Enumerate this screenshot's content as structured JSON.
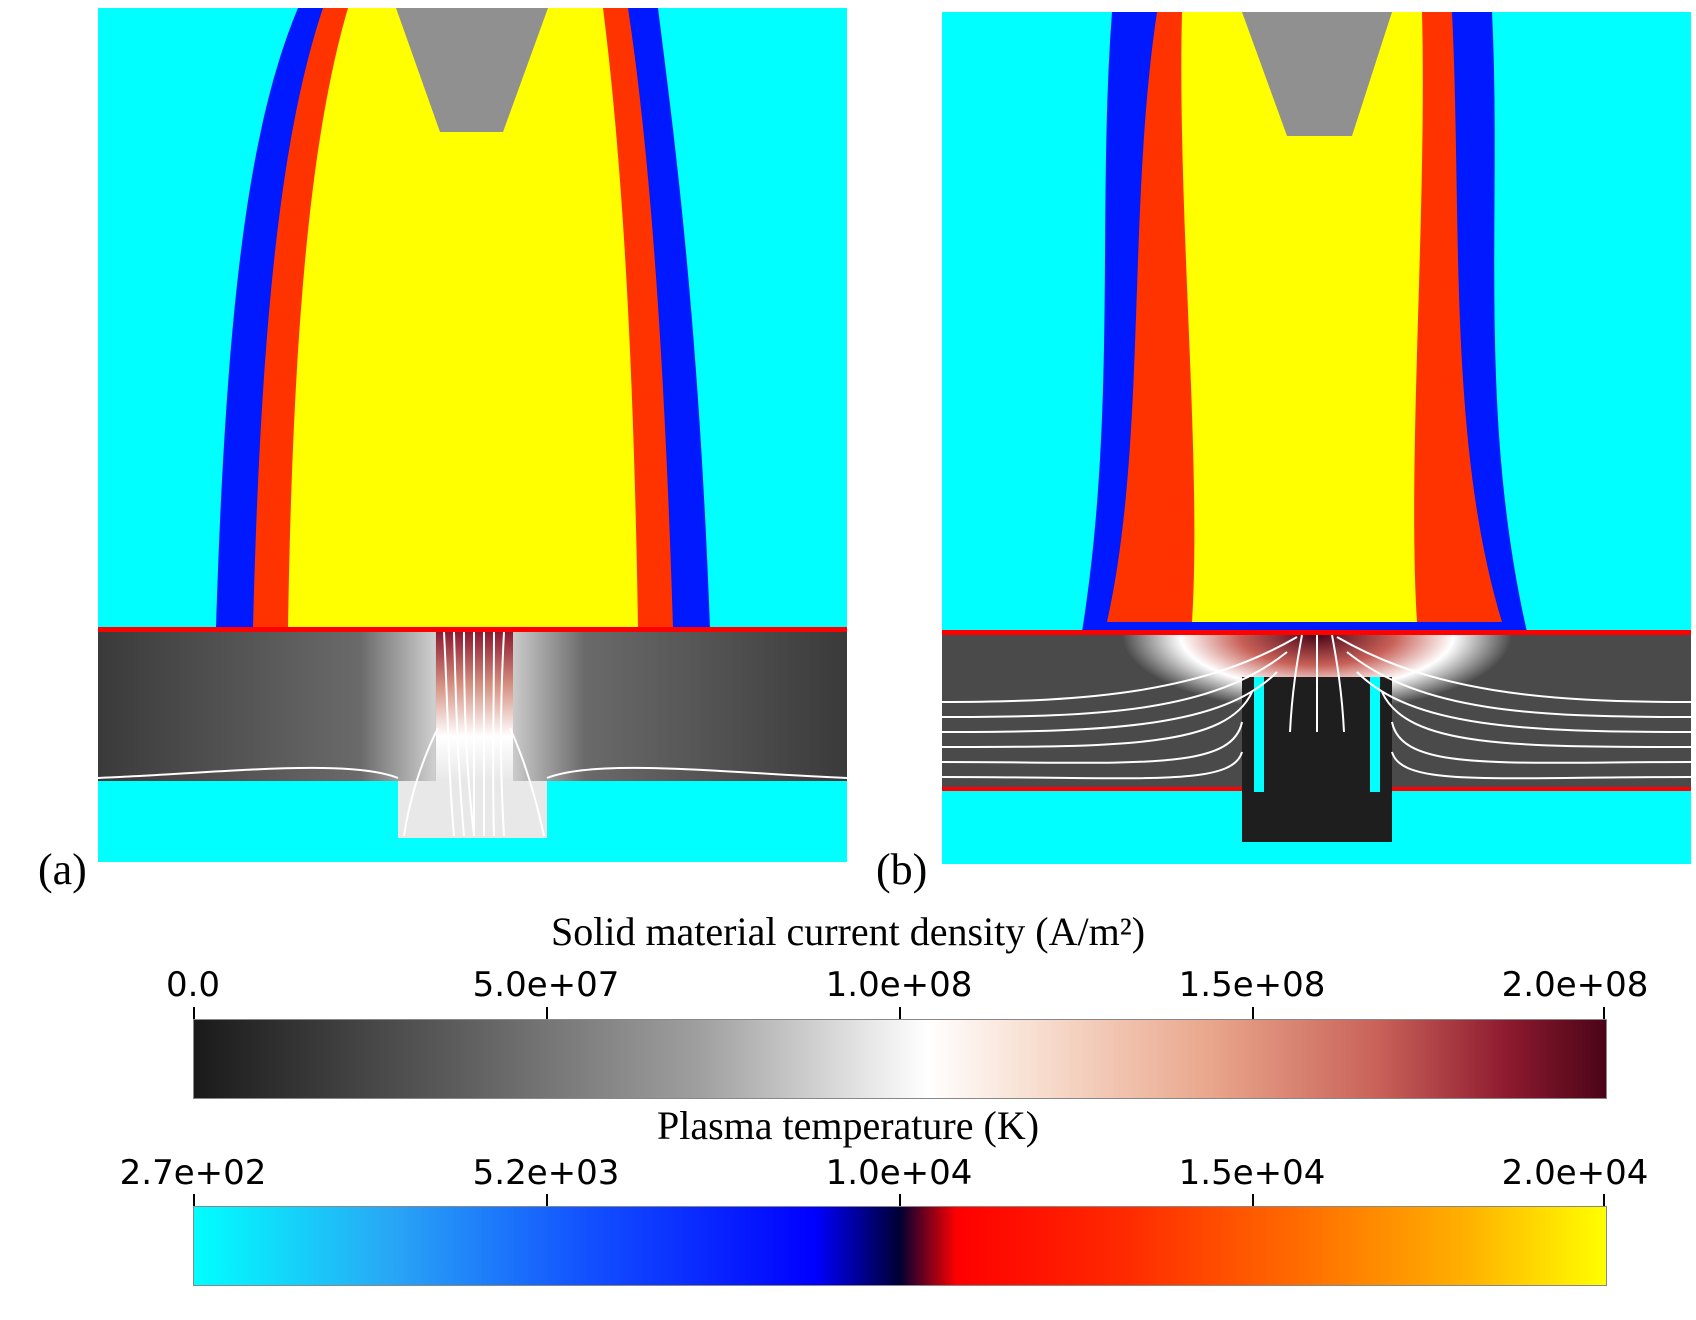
{
  "panels": {
    "a": {
      "label": "(a)"
    },
    "b": {
      "label": "(b)"
    }
  },
  "colorbars": {
    "current_density": {
      "title": "Solid material current density (A/m²)",
      "ticks": [
        "0.0",
        "5.0e+07",
        "1.0e+08",
        "1.5e+08",
        "2.0e+08"
      ],
      "colors": [
        "#1a1a1a",
        "#a0a0a0",
        "#ffffff",
        "#c86158",
        "#4b0418"
      ]
    },
    "plasma_temperature": {
      "title": "Plasma temperature (K)",
      "ticks": [
        "2.7e+02",
        "5.2e+03",
        "1.0e+04",
        "1.5e+04",
        "2.0e+04"
      ],
      "colors": [
        "#00ffff",
        "#1250ff",
        "#000033",
        "#ff2a00",
        "#ffff00"
      ]
    }
  },
  "colors": {
    "ambient": "#00ffff",
    "arc_core": "#ffff00",
    "arc_edge": "#ff3300",
    "cold_edge": "#0000ff",
    "electrode": "#909090",
    "solid": "#4a4a4a",
    "surface_line": "#ff0000",
    "streamline": "#ffffff"
  }
}
